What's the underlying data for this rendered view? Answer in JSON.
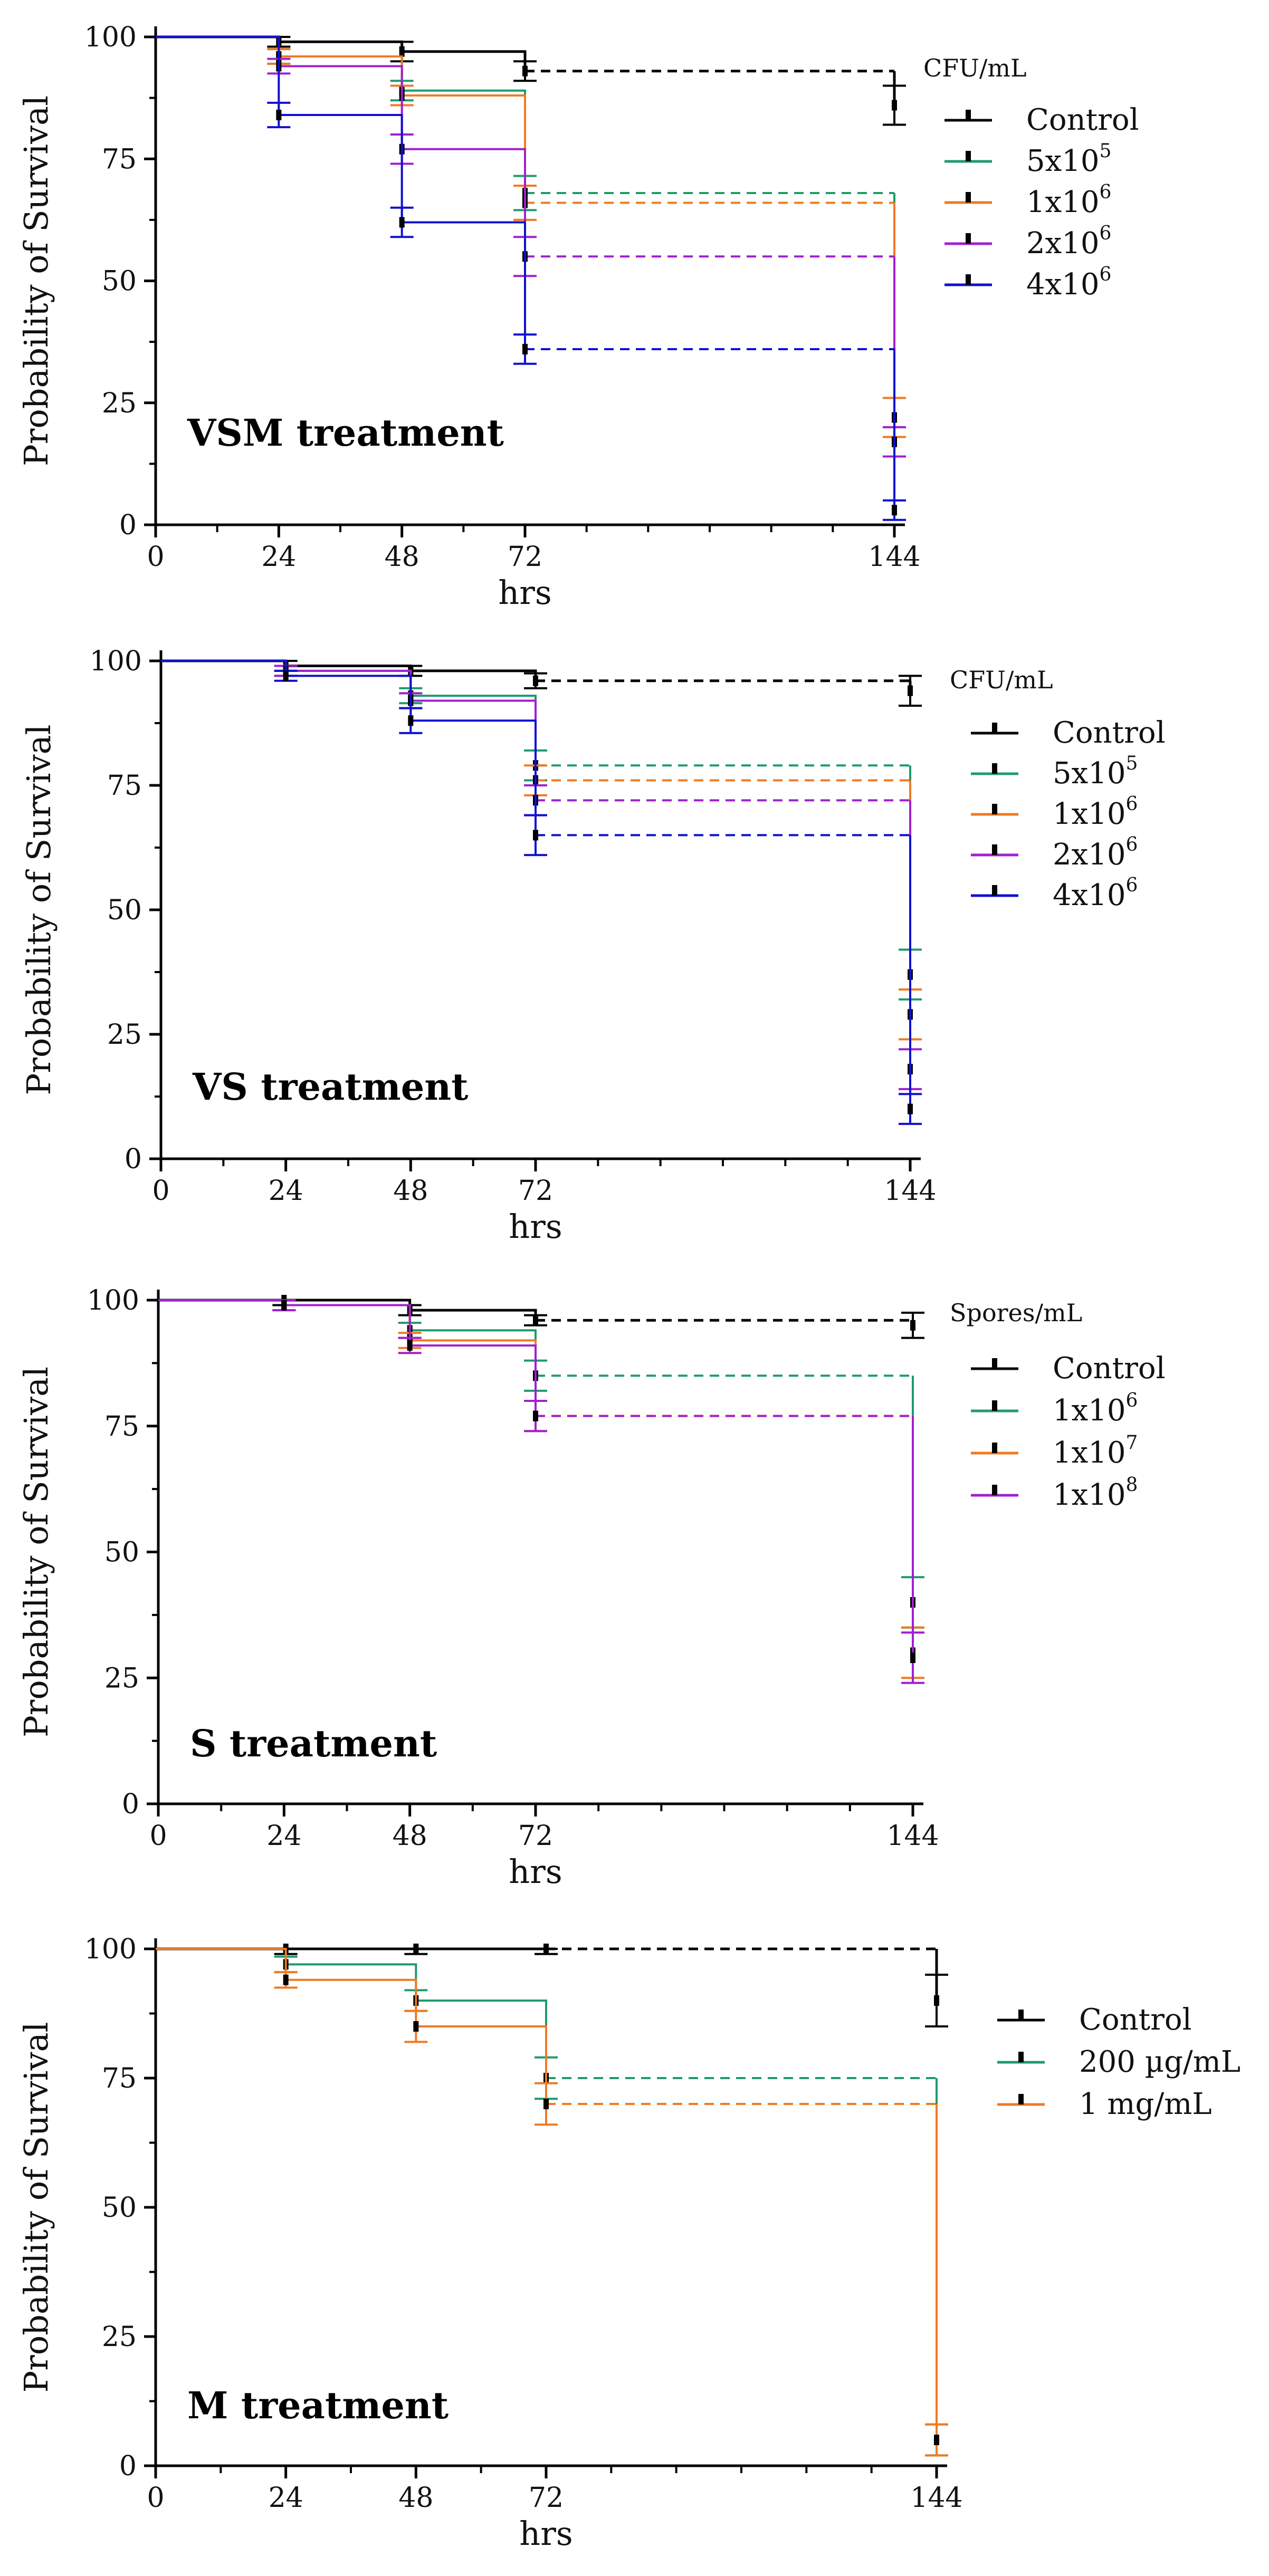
{
  "chart_data": [
    {
      "type": "line",
      "title": "VSM treatment",
      "xlabel": "hrs",
      "ylabel": "Probability of Survival",
      "xlim": [
        0,
        144
      ],
      "ylim": [
        0,
        100
      ],
      "xticks": [
        "0",
        "24",
        "48",
        "72",
        "144"
      ],
      "yticks": [
        "0",
        "25",
        "50",
        "75",
        "100"
      ],
      "legend_title": "CFU/mL",
      "legend": [
        {
          "base": "Control",
          "exp": ""
        },
        {
          "base": "5x10",
          "exp": "5"
        },
        {
          "base": "1x10",
          "exp": "6"
        },
        {
          "base": "2x10",
          "exp": "6"
        },
        {
          "base": "4x10",
          "exp": "6"
        }
      ],
      "series": [
        {
          "name": "Control",
          "color": "#000000",
          "x": [
            0,
            24,
            48,
            72,
            144
          ],
          "y": [
            100,
            99,
            97,
            93,
            86
          ],
          "err": [
            0,
            1,
            2,
            2,
            4
          ]
        },
        {
          "name": "5x10^5",
          "color": "#1f9a6e",
          "x": [
            0,
            24,
            48,
            72,
            144
          ],
          "y": [
            100,
            96,
            89,
            68,
            22
          ],
          "err": [
            0,
            1.5,
            2,
            3.5,
            4
          ]
        },
        {
          "name": "1x10^6",
          "color": "#f07a22",
          "x": [
            0,
            24,
            48,
            72,
            144
          ],
          "y": [
            100,
            96,
            88,
            66,
            22
          ],
          "err": [
            0,
            1.5,
            2,
            3.5,
            4
          ]
        },
        {
          "name": "2x10^6",
          "color": "#a020d0",
          "x": [
            0,
            24,
            48,
            72,
            144
          ],
          "y": [
            100,
            94,
            77,
            55,
            17
          ],
          "err": [
            0,
            1.5,
            3,
            4,
            3
          ]
        },
        {
          "name": "4x10^6",
          "color": "#1010d0",
          "x": [
            0,
            24,
            48,
            72,
            144
          ],
          "y": [
            100,
            84,
            62,
            36,
            3
          ],
          "err": [
            0,
            2.5,
            3,
            3,
            2
          ]
        }
      ]
    },
    {
      "type": "line",
      "title": "VS treatment",
      "xlabel": "hrs",
      "ylabel": "Probability of Survival",
      "xlim": [
        0,
        144
      ],
      "ylim": [
        0,
        100
      ],
      "xticks": [
        "0",
        "24",
        "48",
        "72",
        "144"
      ],
      "yticks": [
        "0",
        "25",
        "50",
        "75",
        "100"
      ],
      "legend_title": "CFU/mL",
      "legend": [
        {
          "base": "Control",
          "exp": ""
        },
        {
          "base": "5x10",
          "exp": "5"
        },
        {
          "base": "1x10",
          "exp": "6"
        },
        {
          "base": "2x10",
          "exp": "6"
        },
        {
          "base": "4x10",
          "exp": "6"
        }
      ],
      "series": [
        {
          "name": "Control",
          "color": "#000000",
          "x": [
            0,
            24,
            48,
            72,
            144
          ],
          "y": [
            100,
            99,
            98,
            96,
            94
          ],
          "err": [
            0,
            1,
            1,
            1.5,
            3
          ]
        },
        {
          "name": "5x10^5",
          "color": "#1f9a6e",
          "x": [
            0,
            24,
            48,
            72,
            144
          ],
          "y": [
            100,
            98,
            93,
            79,
            37
          ],
          "err": [
            0,
            1,
            1.5,
            3,
            5
          ]
        },
        {
          "name": "1x10^6",
          "color": "#f07a22",
          "x": [
            0,
            24,
            48,
            72,
            144
          ],
          "y": [
            100,
            98,
            92,
            76,
            29
          ],
          "err": [
            0,
            1,
            1.5,
            3,
            5
          ]
        },
        {
          "name": "2x10^6",
          "color": "#a020d0",
          "x": [
            0,
            24,
            48,
            72,
            144
          ],
          "y": [
            100,
            98,
            92,
            72,
            18
          ],
          "err": [
            0,
            1,
            1.5,
            3,
            4
          ]
        },
        {
          "name": "4x10^6",
          "color": "#1010d0",
          "x": [
            0,
            24,
            48,
            72,
            144
          ],
          "y": [
            100,
            97,
            88,
            65,
            10
          ],
          "err": [
            0,
            1,
            2.5,
            4,
            3
          ]
        }
      ]
    },
    {
      "type": "line",
      "title": "S treatment",
      "xlabel": "hrs",
      "ylabel": "Probability of Survival",
      "xlim": [
        0,
        144
      ],
      "ylim": [
        0,
        100
      ],
      "xticks": [
        "0",
        "24",
        "48",
        "72",
        "144"
      ],
      "yticks": [
        "0",
        "25",
        "50",
        "75",
        "100"
      ],
      "legend_title": "Spores/mL",
      "legend": [
        {
          "base": "Control",
          "exp": ""
        },
        {
          "base": "1x10",
          "exp": "6"
        },
        {
          "base": "1x10",
          "exp": "7"
        },
        {
          "base": "1x10",
          "exp": "8"
        }
      ],
      "series": [
        {
          "name": "Control",
          "color": "#000000",
          "x": [
            0,
            24,
            48,
            72,
            144
          ],
          "y": [
            100,
            100,
            98,
            96,
            95
          ],
          "err": [
            0,
            1,
            1,
            1,
            2.5
          ]
        },
        {
          "name": "1x10^6",
          "color": "#1f9a6e",
          "x": [
            0,
            24,
            48,
            72,
            144
          ],
          "y": [
            100,
            99,
            94,
            85,
            40
          ],
          "err": [
            0,
            1,
            1.5,
            3,
            5
          ]
        },
        {
          "name": "1x10^7",
          "color": "#f07a22",
          "x": [
            0,
            24,
            48,
            72,
            144
          ],
          "y": [
            100,
            99,
            92,
            77,
            30
          ],
          "err": [
            0,
            1,
            1.5,
            3,
            5
          ]
        },
        {
          "name": "1x10^8",
          "color": "#a020d0",
          "x": [
            0,
            24,
            48,
            72,
            144
          ],
          "y": [
            100,
            99,
            91,
            77,
            29
          ],
          "err": [
            0,
            1,
            1.5,
            3,
            5
          ]
        }
      ]
    },
    {
      "type": "line",
      "title": "M treatment",
      "xlabel": "hrs",
      "ylabel": "Probability of Survival",
      "xlim": [
        0,
        144
      ],
      "ylim": [
        0,
        100
      ],
      "xticks": [
        "0",
        "24",
        "48",
        "72",
        "144"
      ],
      "yticks": [
        "0",
        "25",
        "50",
        "75",
        "100"
      ],
      "legend_title": "",
      "legend": [
        {
          "base": "Control",
          "exp": ""
        },
        {
          "base": "200 µg/mL",
          "exp": ""
        },
        {
          "base": "1 mg/mL",
          "exp": ""
        }
      ],
      "series": [
        {
          "name": "Control",
          "color": "#000000",
          "x": [
            0,
            24,
            48,
            72,
            144
          ],
          "y": [
            100,
            100,
            100,
            100,
            90
          ],
          "err": [
            0,
            1,
            1,
            1,
            5
          ]
        },
        {
          "name": "200 µg/mL",
          "color": "#1f9a6e",
          "x": [
            0,
            24,
            48,
            72,
            144
          ],
          "y": [
            100,
            97,
            90,
            75,
            5
          ],
          "err": [
            0,
            1.5,
            2,
            4,
            3
          ]
        },
        {
          "name": "1 mg/mL",
          "color": "#f07a22",
          "x": [
            0,
            24,
            48,
            72,
            144
          ],
          "y": [
            100,
            94,
            85,
            70,
            5
          ],
          "err": [
            0,
            1.5,
            3,
            4,
            3
          ]
        }
      ]
    }
  ]
}
